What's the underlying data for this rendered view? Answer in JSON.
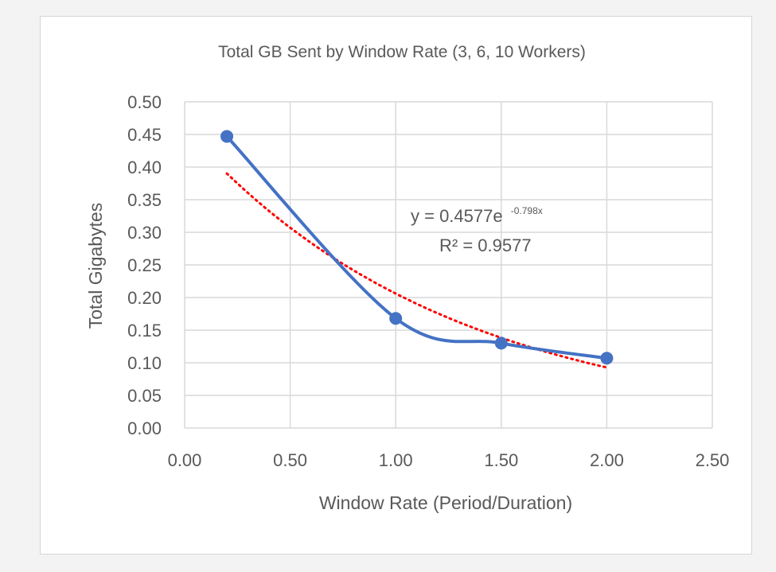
{
  "chart_data": {
    "type": "scatter",
    "title": "Total GB Sent   by Window Rate (3, 6, 10 Workers)",
    "xlabel": "Window Rate (Period/Duration)",
    "ylabel": "Total Gigabytes",
    "xlim": [
      0,
      2.5
    ],
    "ylim": [
      0,
      0.5
    ],
    "x_ticks": [
      "0.00",
      "0.50",
      "1.00",
      "1.50",
      "2.00",
      "2.50"
    ],
    "y_ticks": [
      "0.00",
      "0.05",
      "0.10",
      "0.15",
      "0.20",
      "0.25",
      "0.30",
      "0.35",
      "0.40",
      "0.45",
      "0.50"
    ],
    "grid": true,
    "series": [
      {
        "style": "smooth-line-with-markers",
        "color": "#4472c4",
        "x": [
          0.2,
          1.0,
          1.5,
          2.0
        ],
        "y": [
          0.447,
          0.168,
          0.13,
          0.107
        ]
      }
    ],
    "trendline": {
      "kind": "exponential",
      "a": 0.4577,
      "b": -0.798,
      "x_range": [
        0.2,
        2.0
      ],
      "color": "#ff0000",
      "style": "dotted",
      "equation_main": "y = 0.4577e",
      "equation_exponent": "-0.798x",
      "r_squared": "R² = 0.9577"
    }
  }
}
